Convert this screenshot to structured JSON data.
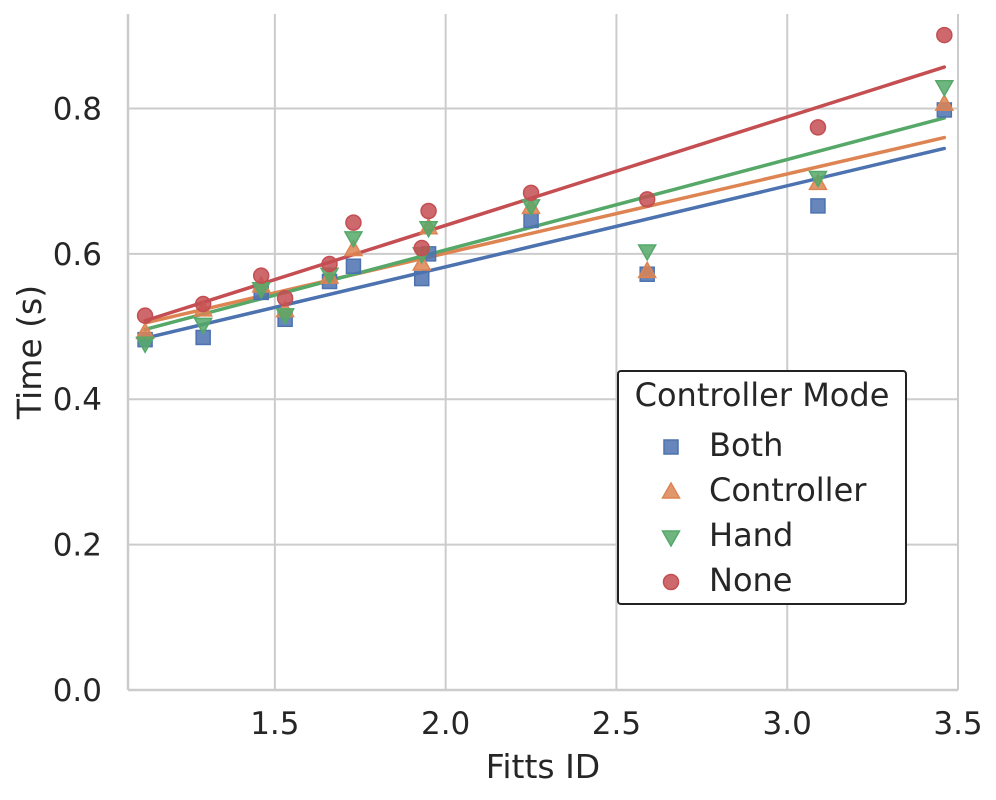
{
  "chart_data": {
    "type": "scatter",
    "title": "",
    "xlabel": "Fitts ID",
    "ylabel": "Time (s)",
    "xlim": [
      1.07,
      3.5
    ],
    "ylim": [
      0.0,
      0.93
    ],
    "xticks": [
      1.5,
      2.0,
      2.5,
      3.0,
      3.5
    ],
    "xtick_labels": [
      "1.5",
      "2.0",
      "2.5",
      "3.0",
      "3.5"
    ],
    "yticks": [
      0.0,
      0.2,
      0.4,
      0.6,
      0.8
    ],
    "ytick_labels": [
      "0.0",
      "0.2",
      "0.4",
      "0.6",
      "0.8"
    ],
    "grid": true,
    "legend": {
      "title": "Controller Mode",
      "placement": "center-right"
    },
    "x": [
      1.12,
      1.29,
      1.46,
      1.53,
      1.66,
      1.73,
      1.93,
      1.95,
      2.25,
      2.59,
      3.09,
      3.46
    ],
    "series": [
      {
        "name": "Both",
        "marker": "square",
        "color": "#4c72b0",
        "values": [
          0.482,
          0.485,
          0.547,
          0.51,
          0.562,
          0.583,
          0.566,
          0.6,
          0.646,
          0.572,
          0.666,
          0.798
        ],
        "fit": {
          "x0": 1.12,
          "y0": 0.484,
          "x1": 3.46,
          "y1": 0.745
        }
      },
      {
        "name": "Controller",
        "marker": "triangle-up",
        "color": "#dd8452",
        "values": [
          0.492,
          0.523,
          0.556,
          0.522,
          0.568,
          0.606,
          0.586,
          0.636,
          0.664,
          0.576,
          0.697,
          0.806
        ],
        "fit": {
          "x0": 1.12,
          "y0": 0.505,
          "x1": 3.46,
          "y1": 0.76
        }
      },
      {
        "name": "Hand",
        "marker": "triangle-down",
        "color": "#55a868",
        "values": [
          0.477,
          0.503,
          0.552,
          0.516,
          0.572,
          0.622,
          0.6,
          0.636,
          0.666,
          0.604,
          0.705,
          0.83
        ],
        "fit": {
          "x0": 1.12,
          "y0": 0.496,
          "x1": 3.46,
          "y1": 0.787
        }
      },
      {
        "name": "None",
        "marker": "circle",
        "color": "#c44e52",
        "values": [
          0.515,
          0.531,
          0.57,
          0.539,
          0.586,
          0.643,
          0.608,
          0.659,
          0.684,
          0.675,
          0.774,
          0.901
        ],
        "fit": {
          "x0": 1.12,
          "y0": 0.508,
          "x1": 3.46,
          "y1": 0.857
        }
      }
    ]
  }
}
